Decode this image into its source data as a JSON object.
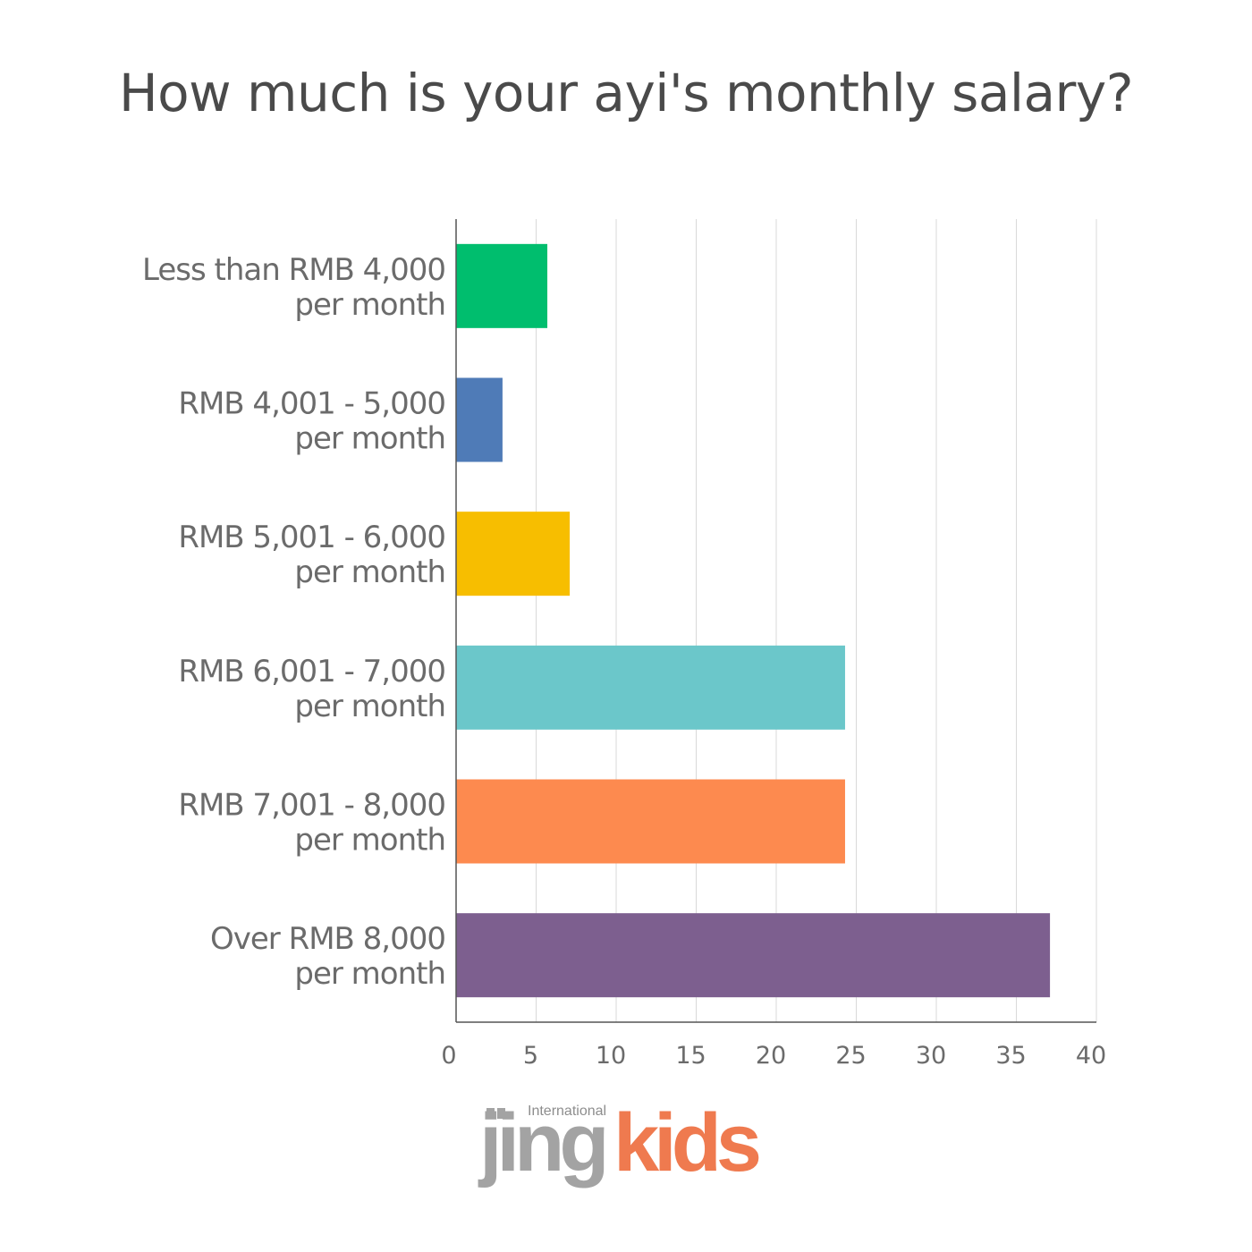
{
  "chart_data": {
    "type": "bar",
    "orientation": "horizontal",
    "title": "How much is your ayi's monthly salary?",
    "categories": [
      [
        "Less than RMB 4,000",
        "per month"
      ],
      [
        "RMB 4,001 - 5,000",
        "per month"
      ],
      [
        "RMB 5,001 - 6,000",
        "per month"
      ],
      [
        "RMB 6,001 - 7,000",
        "per month"
      ],
      [
        "RMB 7,001 - 8,000",
        "per month"
      ],
      [
        "Over RMB 8,000",
        "per month"
      ]
    ],
    "values": [
      5.7,
      2.9,
      7.1,
      24.3,
      24.3,
      37.1
    ],
    "colors": [
      "#00be6e",
      "#4f7bb7",
      "#f7be00",
      "#6bc7ca",
      "#fd8a4f",
      "#7d5f8f"
    ],
    "xlim": [
      0,
      40
    ],
    "xticks": [
      0,
      5,
      10,
      15,
      20,
      25,
      30,
      35,
      40
    ],
    "grid": "vertical",
    "xlabel": "",
    "ylabel": ""
  },
  "logo": {
    "small_text": "International",
    "part1": "jing",
    "part2": "kids"
  }
}
